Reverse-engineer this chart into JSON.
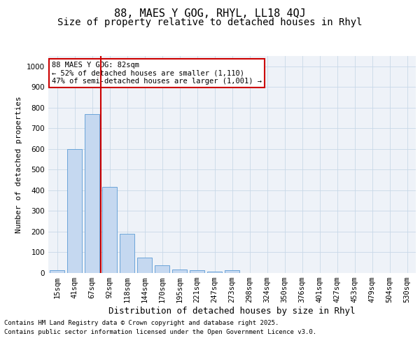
{
  "title": "88, MAES Y GOG, RHYL, LL18 4QJ",
  "subtitle": "Size of property relative to detached houses in Rhyl",
  "xlabel": "Distribution of detached houses by size in Rhyl",
  "ylabel": "Number of detached properties",
  "categories": [
    "15sqm",
    "41sqm",
    "67sqm",
    "92sqm",
    "118sqm",
    "144sqm",
    "170sqm",
    "195sqm",
    "221sqm",
    "247sqm",
    "273sqm",
    "298sqm",
    "324sqm",
    "350sqm",
    "376sqm",
    "401sqm",
    "427sqm",
    "453sqm",
    "479sqm",
    "504sqm",
    "530sqm"
  ],
  "values": [
    13,
    600,
    770,
    415,
    190,
    75,
    38,
    18,
    12,
    8,
    13,
    0,
    0,
    0,
    0,
    0,
    0,
    0,
    0,
    0,
    0
  ],
  "bar_color": "#c5d8f0",
  "bar_edge_color": "#5b9bd5",
  "grid_color": "#c8d8e8",
  "plot_bg_color": "#eef2f8",
  "vline_color": "#cc0000",
  "annotation_text": "88 MAES Y GOG: 82sqm\n← 52% of detached houses are smaller (1,110)\n47% of semi-detached houses are larger (1,001) →",
  "annotation_box_color": "#cc0000",
  "ylim": [
    0,
    1050
  ],
  "yticks": [
    0,
    100,
    200,
    300,
    400,
    500,
    600,
    700,
    800,
    900,
    1000
  ],
  "footer_line1": "Contains HM Land Registry data © Crown copyright and database right 2025.",
  "footer_line2": "Contains public sector information licensed under the Open Government Licence v3.0.",
  "title_fontsize": 11,
  "subtitle_fontsize": 10,
  "xlabel_fontsize": 9,
  "ylabel_fontsize": 8,
  "tick_fontsize": 7.5,
  "annotation_fontsize": 7.5,
  "footer_fontsize": 6.5
}
